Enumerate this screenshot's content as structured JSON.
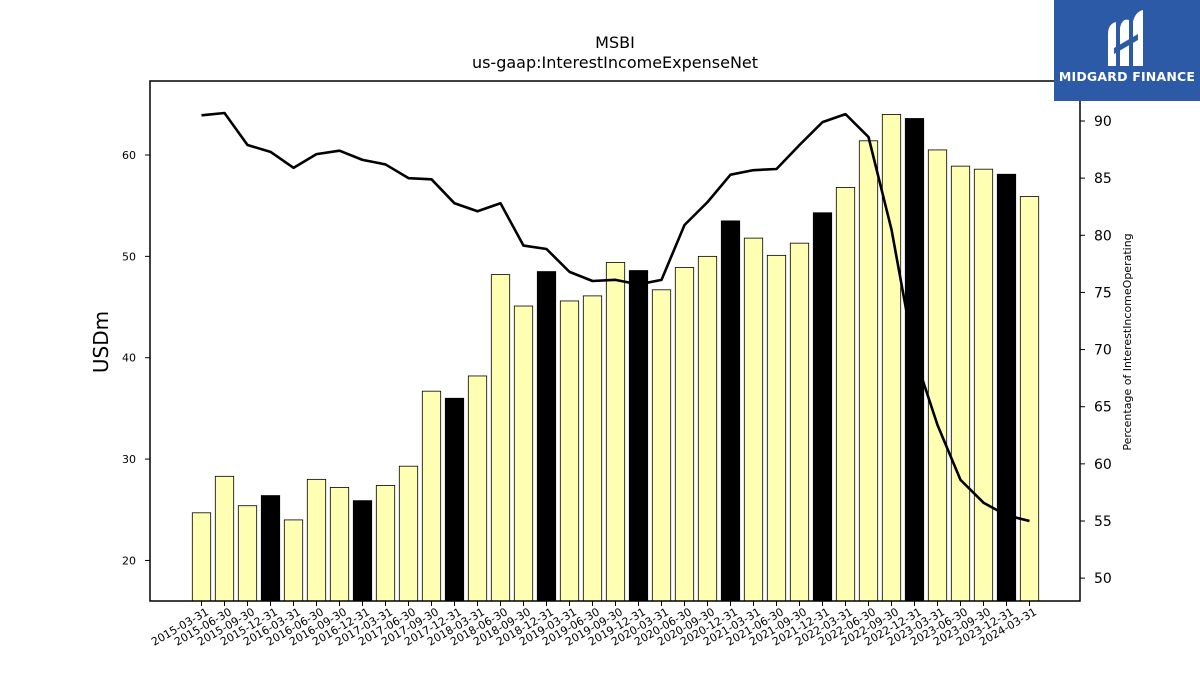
{
  "logo": {
    "text": "MIDGARD FINANCE"
  },
  "chart_data": {
    "type": "bar",
    "title": "MSBI",
    "subtitle": "us-gaap:InterestIncomeExpenseNet",
    "ylabel": "USDm",
    "y2label": "Percentage of InterestIncomeOperating",
    "ylim": [
      16,
      67.3
    ],
    "y2lim": [
      48,
      93.5
    ],
    "yticks": [
      20,
      30,
      40,
      50,
      60
    ],
    "y2ticks": [
      50,
      55,
      60,
      65,
      70,
      75,
      80,
      85,
      90
    ],
    "categories": [
      "2015-03-31",
      "2015-06-30",
      "2015-09-30",
      "2015-12-31",
      "2016-03-31",
      "2016-06-30",
      "2016-09-30",
      "2016-12-31",
      "2017-03-31",
      "2017-06-30",
      "2017-09-30",
      "2017-12-31",
      "2018-03-31",
      "2018-06-30",
      "2018-09-30",
      "2018-12-31",
      "2019-03-31",
      "2019-06-30",
      "2019-09-30",
      "2019-12-31",
      "2020-03-31",
      "2020-06-30",
      "2020-09-30",
      "2020-12-31",
      "2021-03-31",
      "2021-06-30",
      "2021-09-30",
      "2021-12-31",
      "2022-03-31",
      "2022-06-30",
      "2022-09-30",
      "2022-12-31",
      "2023-03-31",
      "2023-06-30",
      "2023-09-30",
      "2023-12-31",
      "2024-03-31"
    ],
    "values": [
      24.7,
      28.3,
      25.4,
      26.4,
      24.0,
      28.0,
      27.2,
      25.9,
      27.4,
      29.3,
      36.7,
      36.0,
      38.2,
      48.2,
      45.1,
      48.5,
      45.6,
      46.1,
      49.4,
      48.6,
      46.7,
      48.9,
      50.0,
      53.5,
      51.8,
      50.1,
      51.3,
      54.3,
      56.8,
      61.4,
      64.0,
      63.6,
      60.5,
      58.9,
      58.6,
      58.1,
      55.9
    ],
    "highlight": [
      false,
      false,
      false,
      true,
      false,
      false,
      false,
      true,
      false,
      false,
      false,
      true,
      false,
      false,
      false,
      true,
      false,
      false,
      false,
      true,
      false,
      false,
      false,
      true,
      false,
      false,
      false,
      true,
      false,
      false,
      false,
      true,
      false,
      false,
      false,
      true,
      false
    ],
    "line_values": [
      90.5,
      90.7,
      87.9,
      87.3,
      85.9,
      87.1,
      87.4,
      86.6,
      86.2,
      85.0,
      84.9,
      82.8,
      82.1,
      82.8,
      79.1,
      78.8,
      76.8,
      76.0,
      76.1,
      75.7,
      76.1,
      80.9,
      82.9,
      85.3,
      85.7,
      85.8,
      87.9,
      89.9,
      90.6,
      88.6,
      80.5,
      69.5,
      63.4,
      58.6,
      56.6,
      55.5,
      55.0
    ],
    "colors": {
      "bar": "#ffffb3",
      "bar_highlight": "#000000",
      "line": "#000000",
      "edge": "#000000"
    },
    "grid": false,
    "legend": "none"
  }
}
